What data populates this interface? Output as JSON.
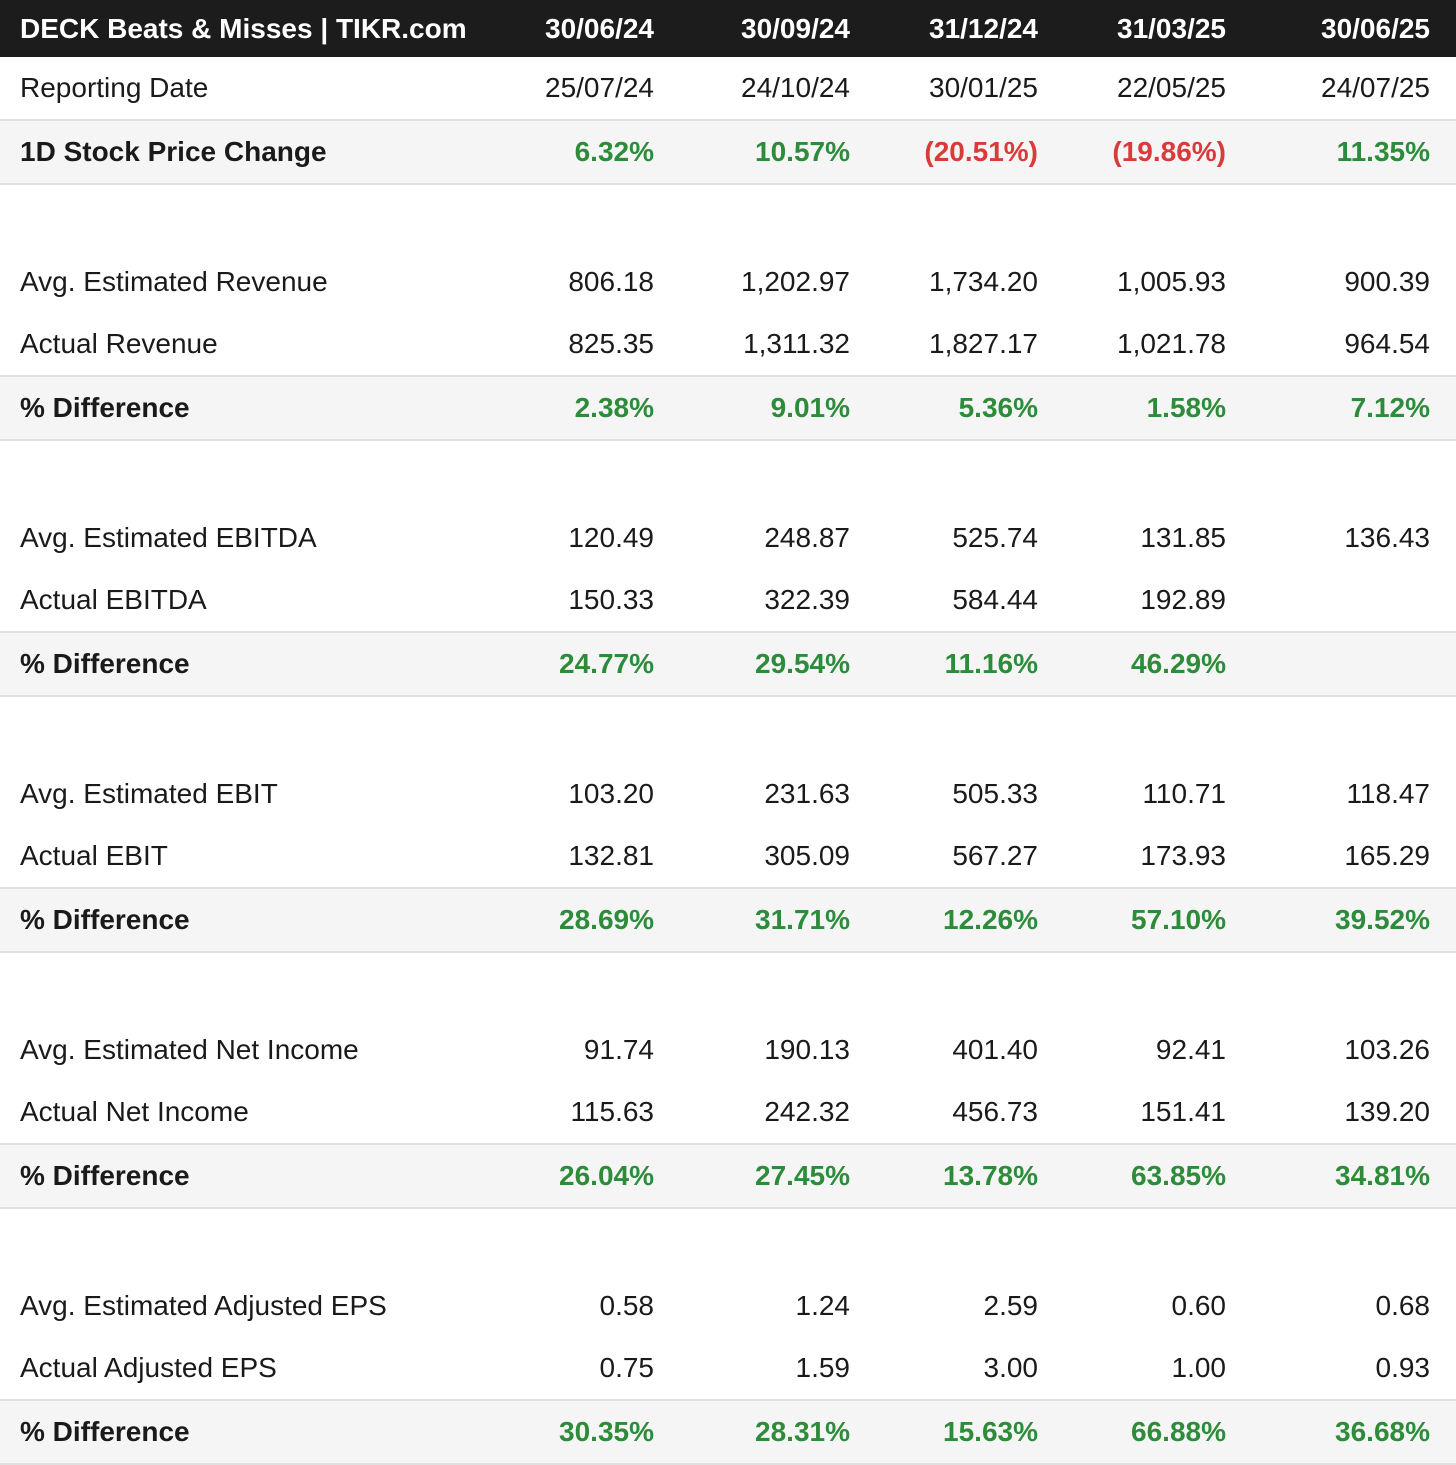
{
  "header": {
    "title": "DECK Beats & Misses | TIKR.com",
    "periods": [
      "30/06/24",
      "30/09/24",
      "31/12/24",
      "31/03/25",
      "30/06/25"
    ]
  },
  "colors": {
    "positive": "#2e8b3a",
    "negative": "#d93a3a",
    "header_bg": "#1c1c1c"
  },
  "chart_data": {
    "type": "table",
    "title": "DECK Beats & Misses | TIKR.com",
    "columns": [
      "30/06/24",
      "30/09/24",
      "31/12/24",
      "31/03/25",
      "30/06/25"
    ],
    "rows": [
      {
        "label": "Reporting Date",
        "values": [
          "25/07/24",
          "24/10/24",
          "30/01/25",
          "22/05/25",
          "24/07/25"
        ]
      },
      {
        "label": "1D Stock Price Change",
        "values": [
          "6.32%",
          "10.57%",
          "(20.51%)",
          "(19.86%)",
          "11.35%"
        ]
      },
      {
        "label": "Avg. Estimated Revenue",
        "values": [
          "806.18",
          "1,202.97",
          "1,734.20",
          "1,005.93",
          "900.39"
        ]
      },
      {
        "label": "Actual Revenue",
        "values": [
          "825.35",
          "1,311.32",
          "1,827.17",
          "1,021.78",
          "964.54"
        ]
      },
      {
        "label": "% Difference",
        "values": [
          "2.38%",
          "9.01%",
          "5.36%",
          "1.58%",
          "7.12%"
        ]
      },
      {
        "label": "Avg. Estimated EBITDA",
        "values": [
          "120.49",
          "248.87",
          "525.74",
          "131.85",
          "136.43"
        ]
      },
      {
        "label": "Actual EBITDA",
        "values": [
          "150.33",
          "322.39",
          "584.44",
          "192.89",
          ""
        ]
      },
      {
        "label": "% Difference",
        "values": [
          "24.77%",
          "29.54%",
          "11.16%",
          "46.29%",
          ""
        ]
      },
      {
        "label": "Avg. Estimated EBIT",
        "values": [
          "103.20",
          "231.63",
          "505.33",
          "110.71",
          "118.47"
        ]
      },
      {
        "label": "Actual EBIT",
        "values": [
          "132.81",
          "305.09",
          "567.27",
          "173.93",
          "165.29"
        ]
      },
      {
        "label": "% Difference",
        "values": [
          "28.69%",
          "31.71%",
          "12.26%",
          "57.10%",
          "39.52%"
        ]
      },
      {
        "label": "Avg. Estimated Net Income",
        "values": [
          "91.74",
          "190.13",
          "401.40",
          "92.41",
          "103.26"
        ]
      },
      {
        "label": "Actual Net Income",
        "values": [
          "115.63",
          "242.32",
          "456.73",
          "151.41",
          "139.20"
        ]
      },
      {
        "label": "% Difference",
        "values": [
          "26.04%",
          "27.45%",
          "13.78%",
          "63.85%",
          "34.81%"
        ]
      },
      {
        "label": "Avg. Estimated Adjusted EPS",
        "values": [
          "0.58",
          "1.24",
          "2.59",
          "0.60",
          "0.68"
        ]
      },
      {
        "label": "Actual Adjusted EPS",
        "values": [
          "0.75",
          "1.59",
          "3.00",
          "1.00",
          "0.93"
        ]
      },
      {
        "label": "% Difference",
        "values": [
          "30.35%",
          "28.31%",
          "15.63%",
          "66.88%",
          "36.68%"
        ]
      }
    ]
  }
}
